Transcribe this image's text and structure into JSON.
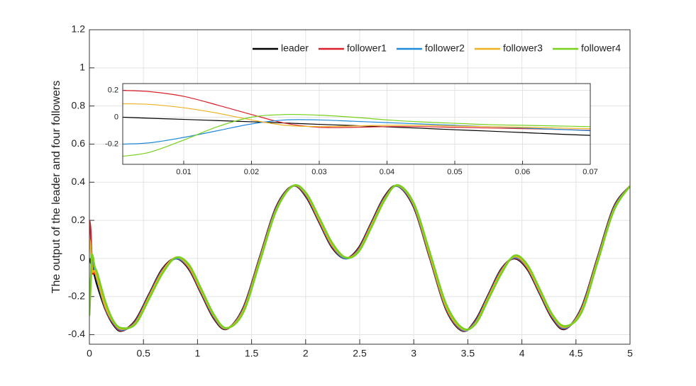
{
  "chart_data": [
    {
      "type": "line",
      "ylabel": "The output of the leader and four followers",
      "x": [
        0,
        0.01,
        0.02,
        0.03,
        0.05,
        0.075,
        0.15,
        0.225,
        0.3,
        0.425,
        0.55,
        0.675,
        0.8,
        0.9175,
        1.035,
        1.1525,
        1.27,
        1.4225,
        1.575,
        1.7275,
        1.88,
        2.0025,
        2.125,
        2.2475,
        2.37,
        2.49,
        2.61,
        2.73,
        2.85,
        3.0,
        3.15,
        3.3,
        3.45,
        3.57,
        3.69,
        3.81,
        3.93,
        4.0475,
        4.165,
        4.2825,
        4.4,
        4.55,
        4.7,
        4.85,
        5
      ],
      "series": [
        {
          "name": "leader",
          "color": "#000000",
          "values": [
            0,
            -0.016,
            -0.034,
            -0.053,
            -0.093,
            -0.145,
            -0.27,
            -0.35,
            -0.38,
            -0.325,
            -0.19,
            -0.055,
            0,
            -0.054,
            -0.185,
            -0.316,
            -0.37,
            -0.26,
            0.005,
            0.27,
            0.38,
            0.325,
            0.19,
            0.055,
            0,
            0.055,
            0.19,
            0.325,
            0.38,
            0.269,
            0,
            -0.269,
            -0.38,
            -0.325,
            -0.19,
            -0.055,
            0,
            -0.054,
            -0.185,
            -0.316,
            -0.37,
            -0.26,
            0.005,
            0.27,
            0.38
          ]
        },
        {
          "name": "follower1",
          "color": "#d9202a",
          "values": [
            0.2,
            0.155,
            0.02,
            -0.075,
            -0.075,
            -0.12,
            -0.265,
            -0.345,
            -0.378,
            -0.33,
            -0.195,
            -0.06,
            0,
            -0.049,
            -0.18,
            -0.311,
            -0.369,
            -0.265,
            0,
            0.265,
            0.38,
            0.33,
            0.195,
            0.06,
            0,
            0.05,
            0.185,
            0.32,
            0.38,
            0.274,
            0.005,
            -0.264,
            -0.378,
            -0.33,
            -0.195,
            -0.06,
            0.002,
            -0.049,
            -0.18,
            -0.311,
            -0.368,
            -0.265,
            0,
            0.265,
            0.38
          ]
        },
        {
          "name": "follower2",
          "color": "#1f8ad6",
          "values": [
            -0.2,
            -0.15,
            -0.05,
            -0.02,
            -0.06,
            -0.12,
            -0.26,
            -0.34,
            -0.375,
            -0.335,
            -0.2,
            -0.065,
            0,
            -0.044,
            -0.175,
            -0.306,
            -0.367,
            -0.27,
            -0.005,
            0.26,
            0.38,
            0.335,
            0.2,
            0.065,
            0,
            0.045,
            0.18,
            0.315,
            0.38,
            0.279,
            0.01,
            -0.259,
            -0.375,
            -0.335,
            -0.2,
            -0.065,
            0.005,
            -0.044,
            -0.175,
            -0.306,
            -0.365,
            -0.27,
            -0.005,
            0.26,
            0.38
          ]
        },
        {
          "name": "follower3",
          "color": "#edb120",
          "values": [
            0.1,
            0.07,
            -0.02,
            -0.07,
            -0.065,
            -0.11,
            -0.255,
            -0.335,
            -0.37,
            -0.34,
            -0.205,
            -0.07,
            0.005,
            -0.04,
            -0.17,
            -0.301,
            -0.366,
            -0.275,
            -0.01,
            0.255,
            0.38,
            0.34,
            0.205,
            0.07,
            0.005,
            0.04,
            0.175,
            0.31,
            0.383,
            0.284,
            0.015,
            -0.254,
            -0.37,
            -0.34,
            -0.205,
            -0.07,
            0.01,
            -0.04,
            -0.17,
            -0.301,
            -0.36,
            -0.275,
            -0.01,
            0.255,
            0.38
          ]
        },
        {
          "name": "follower4",
          "color": "#77d11c",
          "values": [
            -0.3,
            -0.17,
            0.0,
            0.015,
            -0.045,
            -0.08,
            -0.23,
            -0.33,
            -0.365,
            -0.345,
            -0.215,
            -0.08,
            0.005,
            -0.03,
            -0.16,
            -0.295,
            -0.365,
            -0.285,
            -0.02,
            0.25,
            0.38,
            0.345,
            0.215,
            0.08,
            0.005,
            0.035,
            0.165,
            0.305,
            0.385,
            0.29,
            0.03,
            -0.24,
            -0.365,
            -0.345,
            -0.215,
            -0.08,
            0.015,
            -0.03,
            -0.16,
            -0.295,
            -0.355,
            -0.285,
            -0.02,
            0.25,
            0.38
          ]
        }
      ],
      "xlim": [
        0,
        5
      ],
      "ylim": [
        -0.45,
        1.2
      ],
      "xticks": [
        0,
        0.5,
        1,
        1.5,
        2,
        2.5,
        3,
        3.5,
        4,
        4.5,
        5
      ],
      "yticks": [
        -0.4,
        -0.2,
        0,
        0.2,
        0.4,
        0.6,
        0.8,
        1,
        1.2
      ],
      "grid": true,
      "legend": "north-east"
    },
    {
      "type": "line",
      "x": [
        0.001,
        0.005,
        0.01,
        0.015,
        0.02,
        0.025,
        0.03,
        0.035,
        0.04,
        0.045,
        0.05,
        0.055,
        0.06,
        0.065,
        0.07
      ],
      "series": [
        {
          "color": "#000000",
          "values": [
            0,
            -0.008,
            -0.016,
            -0.025,
            -0.034,
            -0.043,
            -0.053,
            -0.062,
            -0.072,
            -0.082,
            -0.093,
            -0.103,
            -0.114,
            -0.125,
            -0.135
          ]
        },
        {
          "color": "#d9202a",
          "values": [
            0.199,
            0.19,
            0.155,
            0.09,
            0.02,
            -0.045,
            -0.075,
            -0.075,
            -0.07,
            -0.07,
            -0.075,
            -0.08,
            -0.085,
            -0.09,
            -0.097
          ]
        },
        {
          "color": "#1f8ad6",
          "values": [
            -0.2,
            -0.19,
            -0.15,
            -0.1,
            -0.05,
            -0.02,
            -0.02,
            -0.03,
            -0.04,
            -0.05,
            -0.06,
            -0.07,
            -0.08,
            -0.09,
            -0.1
          ]
        },
        {
          "color": "#edb120",
          "values": [
            0.1,
            0.095,
            0.07,
            0.03,
            -0.02,
            -0.06,
            -0.07,
            -0.065,
            -0.06,
            -0.06,
            -0.065,
            -0.07,
            -0.075,
            -0.08,
            -0.085
          ]
        },
        {
          "color": "#77d11c",
          "values": [
            -0.29,
            -0.26,
            -0.17,
            -0.07,
            0.0,
            0.02,
            0.015,
            0.0,
            -0.02,
            -0.035,
            -0.045,
            -0.055,
            -0.06,
            -0.065,
            -0.07
          ]
        }
      ],
      "xlim": [
        0.001,
        0.07
      ],
      "ylim": [
        -0.35,
        0.25
      ],
      "xticks": [
        0.01,
        0.02,
        0.03,
        0.04,
        0.05,
        0.06,
        0.07
      ],
      "yticks": [
        -0.2,
        0,
        0.2
      ],
      "grid": true
    }
  ]
}
